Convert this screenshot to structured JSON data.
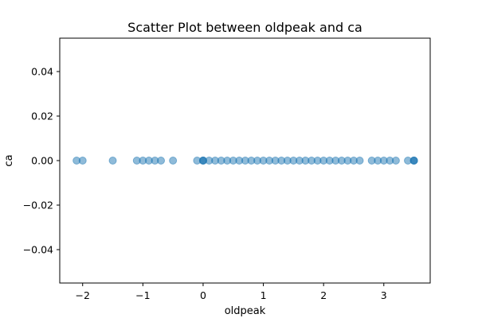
{
  "chart_data": {
    "type": "scatter",
    "title": "Scatter Plot between oldpeak and ca",
    "xlabel": "oldpeak",
    "ylabel": "ca",
    "xlim": [
      -2.38,
      3.77
    ],
    "ylim": [
      -0.055,
      0.055
    ],
    "xticks": [
      -2,
      -1,
      0,
      1,
      2,
      3
    ],
    "yticks": [
      0.04,
      0.02,
      0.0,
      -0.02,
      -0.04
    ],
    "xtick_labels": [
      "−2",
      "−1",
      "0",
      "1",
      "2",
      "3"
    ],
    "ytick_labels": [
      "0.04",
      "0.02",
      "0.00",
      "−0.02",
      "−0.04"
    ],
    "grid": false,
    "marker_color": "#1f77b4",
    "marker_alpha": 0.5,
    "points": [
      {
        "x": -2.1,
        "y": 0
      },
      {
        "x": -2.0,
        "y": 0
      },
      {
        "x": -1.5,
        "y": 0
      },
      {
        "x": -1.1,
        "y": 0
      },
      {
        "x": -1.0,
        "y": 0
      },
      {
        "x": -0.9,
        "y": 0
      },
      {
        "x": -0.8,
        "y": 0
      },
      {
        "x": -0.7,
        "y": 0
      },
      {
        "x": -0.5,
        "y": 0
      },
      {
        "x": -0.1,
        "y": 0
      },
      {
        "x": 0.0,
        "y": 0
      },
      {
        "x": 0.0,
        "y": 0
      },
      {
        "x": 0.0,
        "y": 0
      },
      {
        "x": 0.1,
        "y": 0
      },
      {
        "x": 0.2,
        "y": 0
      },
      {
        "x": 0.3,
        "y": 0
      },
      {
        "x": 0.4,
        "y": 0
      },
      {
        "x": 0.5,
        "y": 0
      },
      {
        "x": 0.6,
        "y": 0
      },
      {
        "x": 0.7,
        "y": 0
      },
      {
        "x": 0.8,
        "y": 0
      },
      {
        "x": 0.9,
        "y": 0
      },
      {
        "x": 1.0,
        "y": 0
      },
      {
        "x": 1.1,
        "y": 0
      },
      {
        "x": 1.2,
        "y": 0
      },
      {
        "x": 1.3,
        "y": 0
      },
      {
        "x": 1.4,
        "y": 0
      },
      {
        "x": 1.5,
        "y": 0
      },
      {
        "x": 1.6,
        "y": 0
      },
      {
        "x": 1.7,
        "y": 0
      },
      {
        "x": 1.8,
        "y": 0
      },
      {
        "x": 1.9,
        "y": 0
      },
      {
        "x": 2.0,
        "y": 0
      },
      {
        "x": 2.1,
        "y": 0
      },
      {
        "x": 2.2,
        "y": 0
      },
      {
        "x": 2.3,
        "y": 0
      },
      {
        "x": 2.4,
        "y": 0
      },
      {
        "x": 2.5,
        "y": 0
      },
      {
        "x": 2.6,
        "y": 0
      },
      {
        "x": 2.8,
        "y": 0
      },
      {
        "x": 2.9,
        "y": 0
      },
      {
        "x": 3.0,
        "y": 0
      },
      {
        "x": 3.1,
        "y": 0
      },
      {
        "x": 3.2,
        "y": 0
      },
      {
        "x": 3.4,
        "y": 0
      },
      {
        "x": 3.5,
        "y": 0
      },
      {
        "x": 3.5,
        "y": 0
      },
      {
        "x": 3.5,
        "y": 0
      }
    ]
  }
}
